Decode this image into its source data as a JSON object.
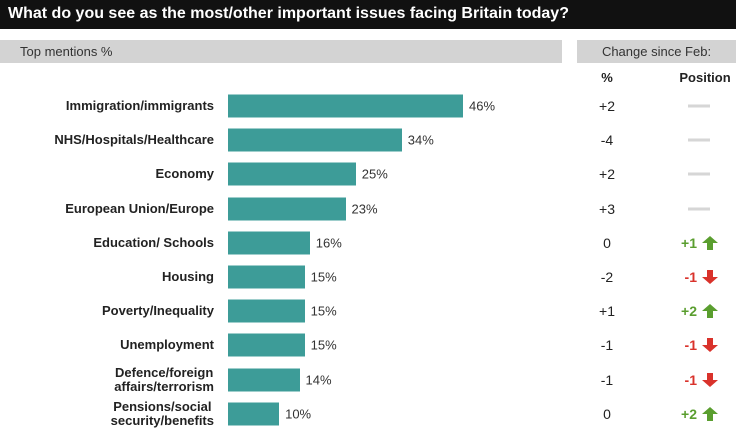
{
  "chart_data": {
    "type": "bar",
    "title": "What do you see as the most/other important issues facing Britain today?",
    "subtitle": "Top mentions %",
    "change_header": "Change since Feb:",
    "change_columns": [
      "%",
      "Position"
    ],
    "categories": [
      "Immigration/immigrants",
      "NHS/Hospitals/Healthcare",
      "Economy",
      "European Union/Europe",
      "Education/ Schools",
      "Housing",
      "Poverty/Inequality",
      "Unemployment",
      "Defence/foreign\naffairs/terrorism",
      "Pensions/social\nsecurity/benefits"
    ],
    "values": [
      46,
      34,
      25,
      23,
      16,
      15,
      15,
      15,
      14,
      10
    ],
    "value_labels": [
      "46%",
      "34%",
      "25%",
      "23%",
      "16%",
      "15%",
      "15%",
      "15%",
      "14%",
      "10%"
    ],
    "color": "#3d9c98",
    "change_pct": [
      "+2",
      "-4",
      "+2",
      "+3",
      "0",
      "-2",
      "+1",
      "-1",
      "-1",
      "0"
    ],
    "position_change": [
      null,
      null,
      null,
      null,
      "+1",
      "-1",
      "+2",
      "-1",
      "-1",
      "+2"
    ],
    "up_color": "#5a9e2f",
    "down_color": "#d9322b"
  }
}
